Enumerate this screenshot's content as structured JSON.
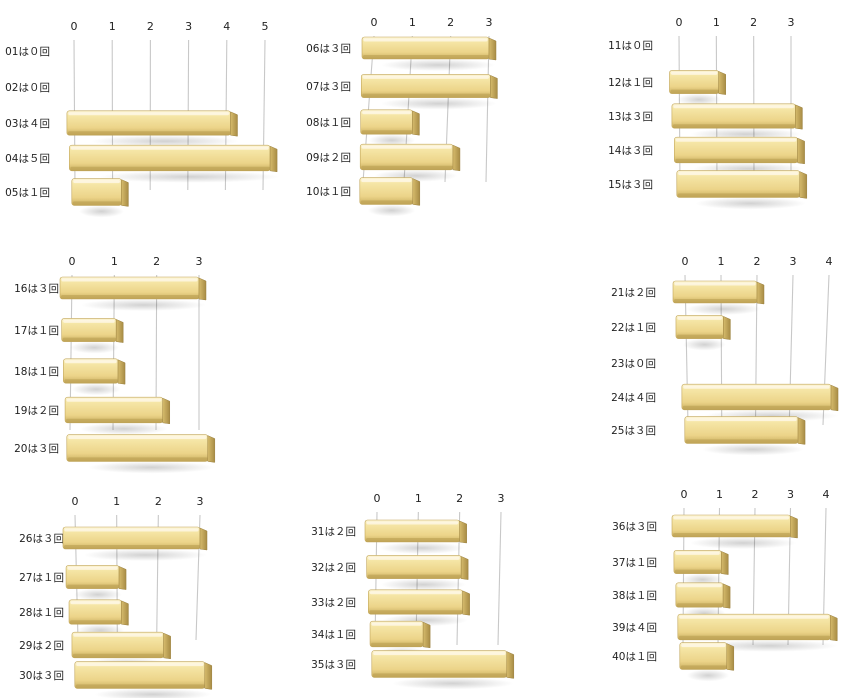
{
  "chart_data": [
    {
      "type": "bar",
      "categories": [
        "01は０回",
        "02は０回",
        "03は４回",
        "04は５回",
        "05は１回"
      ],
      "values": [
        0,
        0,
        4,
        5,
        1
      ],
      "xticks": [
        "0",
        "1",
        "2",
        "3",
        "4",
        "5"
      ],
      "xlim": [
        0,
        5
      ],
      "orientation": "horizontal"
    },
    {
      "type": "bar",
      "categories": [
        "06は３回",
        "07は３回",
        "08は１回",
        "09は２回",
        "10は１回"
      ],
      "values": [
        3,
        3,
        1,
        2,
        1
      ],
      "xticks": [
        "0",
        "1",
        "2",
        "3"
      ],
      "xlim": [
        0,
        3
      ],
      "orientation": "horizontal"
    },
    {
      "type": "bar",
      "categories": [
        "11は０回",
        "12は１回",
        "13は３回",
        "14は３回",
        "15は３回"
      ],
      "values": [
        0,
        1,
        3,
        3,
        3
      ],
      "xticks": [
        "0",
        "1",
        "2",
        "3"
      ],
      "xlim": [
        0,
        3
      ],
      "orientation": "horizontal"
    },
    {
      "type": "bar",
      "categories": [
        "16は３回",
        "17は１回",
        "18は１回",
        "19は２回",
        "20は３回"
      ],
      "values": [
        3,
        1,
        1,
        2,
        3
      ],
      "xticks": [
        "0",
        "1",
        "2",
        "3"
      ],
      "xlim": [
        0,
        3
      ],
      "orientation": "horizontal"
    },
    {
      "type": "bar",
      "categories": [
        "21は２回",
        "22は１回",
        "23は０回",
        "24は４回",
        "25は３回"
      ],
      "values": [
        2,
        1,
        0,
        4,
        3
      ],
      "xticks": [
        "0",
        "1",
        "2",
        "3",
        "4"
      ],
      "xlim": [
        0,
        4
      ],
      "orientation": "horizontal"
    },
    {
      "type": "bar",
      "categories": [
        "26は３回",
        "27は１回",
        "28は１回",
        "29は２回",
        "30は３回"
      ],
      "values": [
        3,
        1,
        1,
        2,
        3
      ],
      "xticks": [
        "0",
        "1",
        "2",
        "3"
      ],
      "xlim": [
        0,
        3
      ],
      "orientation": "horizontal"
    },
    {
      "type": "bar",
      "categories": [
        "31は２回",
        "32は２回",
        "33は２回",
        "34は１回",
        "35は３回"
      ],
      "values": [
        2,
        2,
        2,
        1,
        3
      ],
      "xticks": [
        "0",
        "1",
        "2",
        "3"
      ],
      "xlim": [
        0,
        3
      ],
      "orientation": "horizontal"
    },
    {
      "type": "bar",
      "categories": [
        "36は３回",
        "37は１回",
        "38は１回",
        "39は４回",
        "40は１回"
      ],
      "values": [
        3,
        1,
        1,
        4,
        1
      ],
      "xticks": [
        "0",
        "1",
        "2",
        "3",
        "4"
      ],
      "xlim": [
        0,
        4
      ],
      "orientation": "horizontal"
    }
  ],
  "colors": {
    "bar_face": "#f1dd98",
    "bar_top": "#fbf0c4",
    "bar_shadow": "#b39a52",
    "grid": "#c8c8c8"
  }
}
